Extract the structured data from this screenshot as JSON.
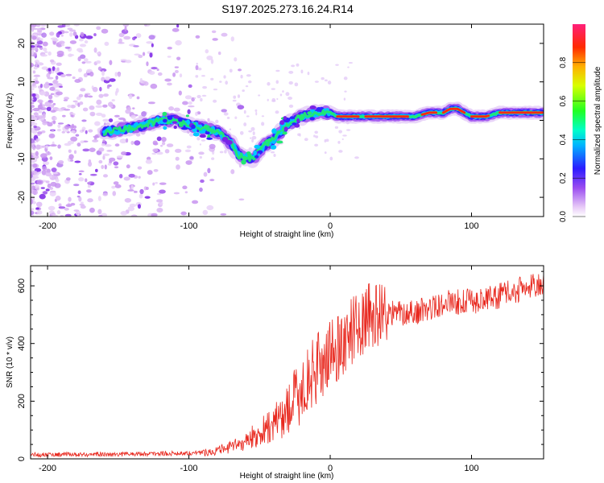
{
  "title": "S197.2025.273.16.24.R14",
  "chart_data": [
    {
      "type": "heatmap",
      "name": "spectrogram",
      "xlabel": "Height of straight line (km)",
      "ylabel": "Frequency (Hz)",
      "xlim": [
        -212,
        151
      ],
      "ylim": [
        -25,
        25
      ],
      "xticks": [
        -200,
        -100,
        0,
        100
      ],
      "yticks": [
        -20,
        -10,
        0,
        10,
        20
      ],
      "colorbar": {
        "label": "Normalized spectral amplitude",
        "range": [
          0.0,
          1.0
        ],
        "ticks": [
          "0.0",
          "0.2",
          "0.4",
          "0.6",
          "0.8"
        ],
        "tick_values": [
          0.0,
          0.2,
          0.4,
          0.6,
          0.8
        ]
      },
      "ridge": {
        "x": [
          -160,
          -140,
          -120,
          -110,
          -100,
          -90,
          -80,
          -70,
          -65,
          -55,
          -50,
          -45,
          -40,
          -35,
          -30,
          -20,
          -10,
          0,
          5,
          10,
          20,
          30,
          40,
          50,
          60,
          70,
          80,
          85,
          90,
          95,
          100,
          110,
          120,
          130,
          140,
          150
        ],
        "y": [
          -3,
          -2,
          0,
          0,
          -1,
          -2,
          -3,
          -6,
          -9,
          -10,
          -8,
          -6,
          -5,
          -3,
          -1,
          1,
          2,
          2,
          1,
          1,
          1,
          1,
          1,
          1,
          1,
          2,
          2,
          3,
          3,
          2,
          1,
          1,
          2,
          2,
          2,
          2
        ]
      },
      "colors": {
        "low": "#e6c9f5",
        "mid": "#7b2ee0"
      }
    },
    {
      "type": "line",
      "name": "snr",
      "xlabel": "Height of straight line (km)",
      "ylabel": "SNR (10 * v/v)",
      "xlim": [
        -212,
        151
      ],
      "ylim": [
        0,
        670
      ],
      "xticks": [
        -200,
        -100,
        0,
        100
      ],
      "yticks": [
        0,
        200,
        400,
        600
      ],
      "series": [
        {
          "name": "SNR",
          "color": "#e8281e",
          "x": [
            -212,
            -180,
            -150,
            -120,
            -100,
            -90,
            -80,
            -70,
            -60,
            -50,
            -40,
            -30,
            -20,
            -10,
            0,
            10,
            20,
            30,
            40,
            50,
            60,
            70,
            80,
            90,
            100,
            110,
            120,
            130,
            140,
            151
          ],
          "y": [
            15,
            15,
            16,
            18,
            20,
            22,
            28,
            40,
            60,
            90,
            120,
            170,
            240,
            310,
            360,
            410,
            470,
            495,
            505,
            505,
            510,
            520,
            540,
            545,
            545,
            555,
            565,
            580,
            595,
            605
          ]
        }
      ]
    }
  ]
}
